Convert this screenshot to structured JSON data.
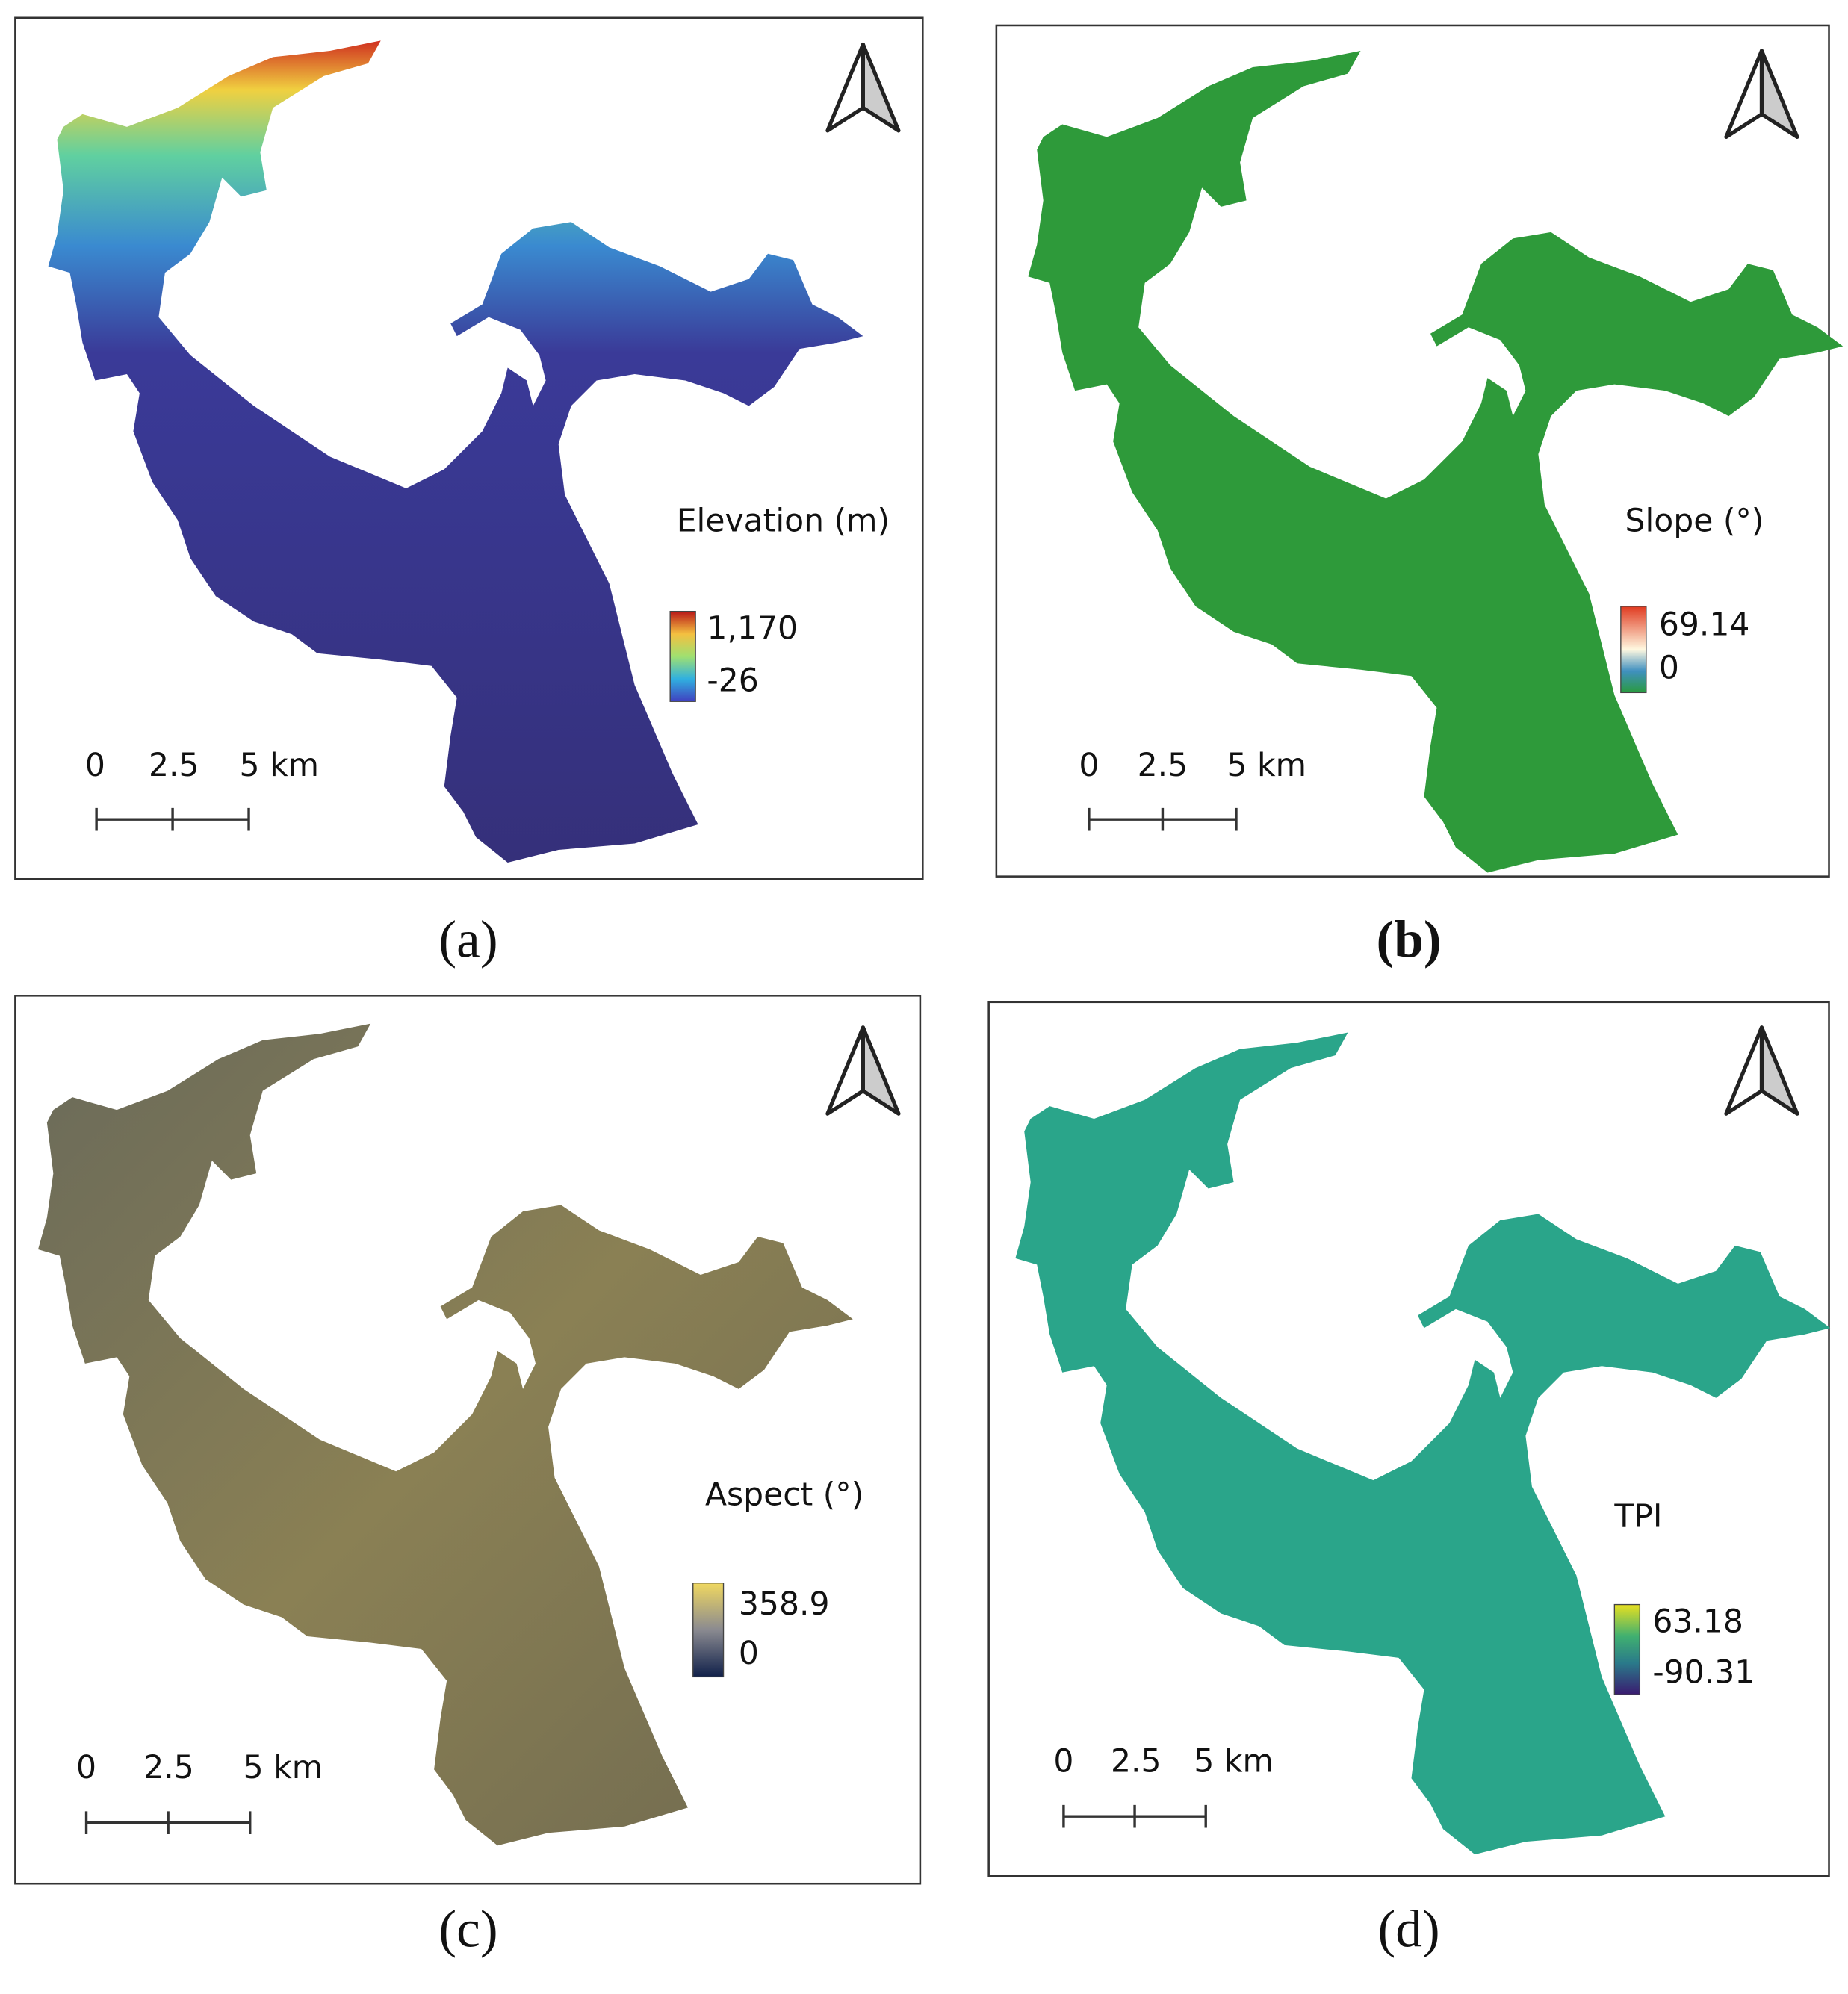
{
  "panels": [
    {
      "legend_title": "Elevation (m)",
      "legend_max": "1,170",
      "legend_min": "-26",
      "scale_labels": [
        "0",
        "2.5",
        "5 km"
      ],
      "caption": "(a)"
    },
    {
      "legend_title": "Slope (°)",
      "legend_max": "69.14",
      "legend_min": "0",
      "scale_labels": [
        "0",
        "2.5",
        "5 km"
      ],
      "caption": "(b)"
    },
    {
      "legend_title": "Aspect (°)",
      "legend_max": "358.9",
      "legend_min": "0",
      "scale_labels": [
        "0",
        "2.5",
        "5 km"
      ],
      "caption": "(c)"
    },
    {
      "legend_title": "TPI",
      "legend_max": "63.18",
      "legend_min": "-90.31",
      "scale_labels": [
        "0",
        "2.5",
        "5 km"
      ],
      "caption": "(d)"
    }
  ]
}
